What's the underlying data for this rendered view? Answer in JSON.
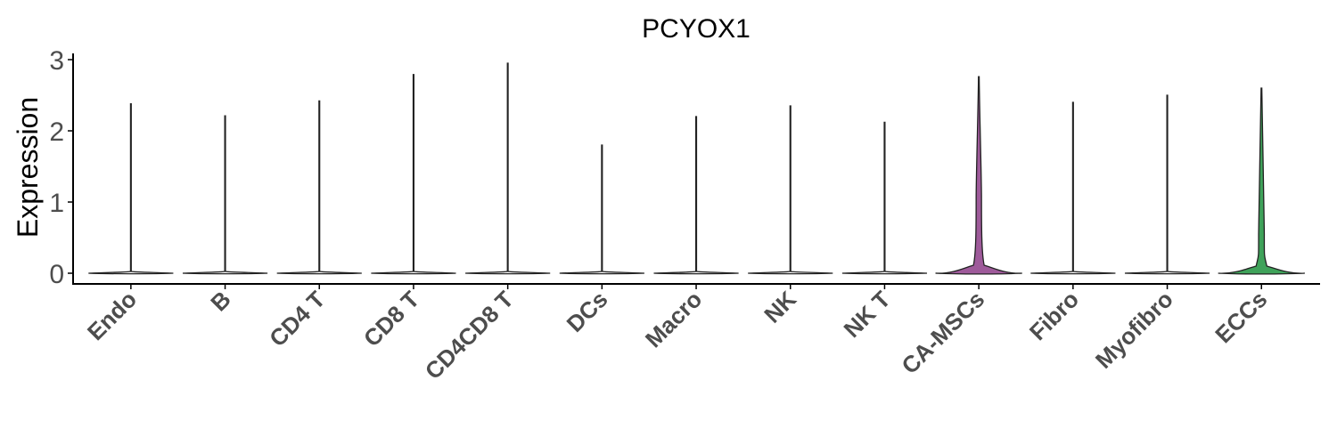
{
  "chart_data": {
    "type": "violin",
    "title": "PCYOX1",
    "xlabel": "",
    "ylabel": "Expression",
    "ylim": [
      0,
      3.0
    ],
    "yticks": [
      "0",
      "1",
      "2",
      "3"
    ],
    "grid": false,
    "legend": "none",
    "categories": [
      "Endo",
      "B",
      "CD4 T",
      "CD8 T",
      "CD4CD8 T",
      "DCs",
      "Macro",
      "NK",
      "NK T",
      "CA-MSCs",
      "Fibro",
      "Myofibro",
      "ECCs"
    ],
    "max_values": [
      2.38,
      2.21,
      2.42,
      2.79,
      2.95,
      1.8,
      2.2,
      2.35,
      2.12,
      2.76,
      2.4,
      2.5,
      2.6
    ],
    "colors": {
      "default": "#ffffff",
      "CA-MSCs": "#9e5a9a",
      "ECCs": "#3fa25a"
    }
  }
}
